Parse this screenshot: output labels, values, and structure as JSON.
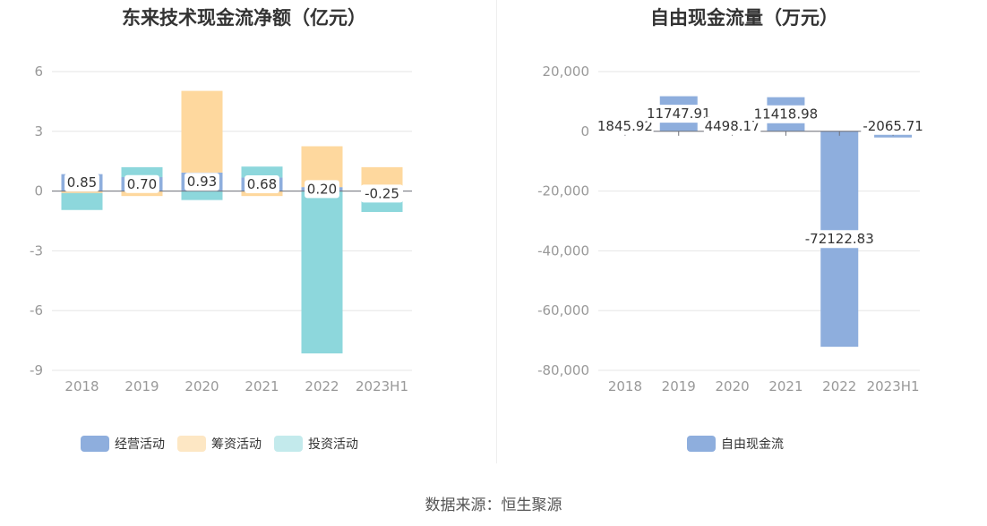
{
  "chart_data": [
    {
      "type": "bar",
      "title": "东来技术现金流净额（亿元）",
      "categories": [
        "2018",
        "2019",
        "2020",
        "2021",
        "2022",
        "2023H1"
      ],
      "ylim": [
        -9,
        6
      ],
      "yticks": [
        "6",
        "3",
        "0",
        "-3",
        "-6",
        "-9"
      ],
      "stacked": true,
      "legend_position": "bottom",
      "series": [
        {
          "name": "经营活动",
          "color": "#8eaedd",
          "values": [
            0.85,
            0.7,
            0.93,
            0.68,
            0.2,
            -0.25
          ],
          "labels": [
            "0.85",
            "0.70",
            "0.93",
            "0.68",
            "0.20",
            "-0.25"
          ]
        },
        {
          "name": "筹资活动",
          "color": "#fed89e",
          "values": [
            -0.1,
            -0.25,
            4.1,
            -0.25,
            2.05,
            1.2
          ]
        },
        {
          "name": "投资活动",
          "color": "#8dd7dc",
          "values": [
            -0.85,
            0.5,
            -0.45,
            0.55,
            -8.15,
            -0.8
          ]
        }
      ]
    },
    {
      "type": "bar",
      "title": "自由现金流量（万元）",
      "categories": [
        "2018",
        "2019",
        "2020",
        "2021",
        "2022",
        "2023H1"
      ],
      "ylim": [
        -80000,
        20000
      ],
      "yticks": [
        "20,000",
        "0",
        "-20,000",
        "-40,000",
        "-60,000",
        "-80,000"
      ],
      "legend_position": "bottom",
      "series": [
        {
          "name": "自由现金流",
          "color": "#8eaedd",
          "values": [
            1845.92,
            11747.91,
            4498.17,
            11418.98,
            -72122.83,
            -2065.71
          ],
          "labels": [
            "1845.92",
            "11747.91",
            "4498.17",
            "11418.98",
            "-72122.83",
            "-2065.71"
          ]
        }
      ]
    }
  ],
  "footer": {
    "source": "数据来源：恒生聚源"
  }
}
